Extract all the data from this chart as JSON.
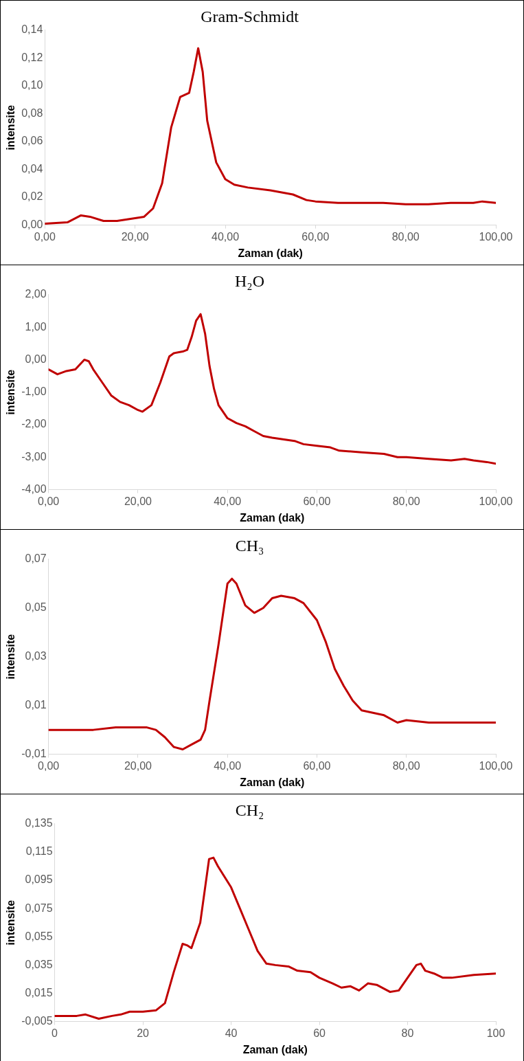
{
  "chart_data": [
    {
      "type": "line",
      "title": "Gram-Schmidt",
      "xlabel": "Zaman (dak)",
      "ylabel": "intensite",
      "marker": "none",
      "line_style": "solid",
      "x": [
        0,
        5,
        8,
        10,
        13,
        16,
        20,
        22,
        24,
        26,
        28,
        30,
        32,
        33,
        34,
        35,
        36,
        38,
        40,
        42,
        45,
        50,
        55,
        58,
        60,
        65,
        70,
        75,
        80,
        85,
        90,
        95,
        97,
        100
      ],
      "series": [
        {
          "color": "#c00000",
          "values": [
            0.001,
            0.002,
            0.007,
            0.006,
            0.003,
            0.003,
            0.005,
            0.006,
            0.012,
            0.03,
            0.07,
            0.092,
            0.095,
            0.11,
            0.127,
            0.11,
            0.075,
            0.045,
            0.033,
            0.029,
            0.027,
            0.025,
            0.022,
            0.018,
            0.017,
            0.016,
            0.016,
            0.016,
            0.015,
            0.015,
            0.016,
            0.016,
            0.017,
            0.016
          ]
        }
      ],
      "xlim": [
        0,
        100
      ],
      "ylim": [
        0,
        0.14
      ],
      "xticks": [
        {
          "value": 0,
          "label": "0,00"
        },
        {
          "value": 20,
          "label": "20,00"
        },
        {
          "value": 40,
          "label": "40,00"
        },
        {
          "value": 60,
          "label": "60,00"
        },
        {
          "value": 80,
          "label": "80,00"
        },
        {
          "value": 100,
          "label": "100,00"
        }
      ],
      "yticks": [
        {
          "value": 0,
          "label": "0,00"
        },
        {
          "value": 0.02,
          "label": "0,02"
        },
        {
          "value": 0.04,
          "label": "0,04"
        },
        {
          "value": 0.06,
          "label": "0,06"
        },
        {
          "value": 0.08,
          "label": "0,08"
        },
        {
          "value": 0.1,
          "label": "0,10"
        },
        {
          "value": 0.12,
          "label": "0,12"
        },
        {
          "value": 0.14,
          "label": "0,14"
        }
      ]
    },
    {
      "type": "line",
      "title": "H₂O",
      "xlabel": "Zaman (dak)",
      "ylabel": "intensite",
      "marker": "none",
      "line_style": "solid",
      "x": [
        0,
        2,
        4,
        6,
        8,
        9,
        10,
        12,
        14,
        16,
        18,
        20,
        21,
        23,
        25,
        27,
        28,
        30,
        31,
        32,
        33,
        34,
        35,
        36,
        37,
        38,
        40,
        42,
        44,
        46,
        48,
        50,
        55,
        57,
        60,
        63,
        65,
        70,
        75,
        78,
        80,
        85,
        90,
        93,
        95,
        98,
        100
      ],
      "series": [
        {
          "color": "#c00000",
          "values": [
            -0.3,
            -0.45,
            -0.35,
            -0.3,
            0.0,
            -0.05,
            -0.3,
            -0.7,
            -1.1,
            -1.3,
            -1.4,
            -1.55,
            -1.6,
            -1.4,
            -0.7,
            0.1,
            0.2,
            0.25,
            0.3,
            0.7,
            1.2,
            1.4,
            0.8,
            -0.2,
            -0.9,
            -1.4,
            -1.8,
            -1.95,
            -2.05,
            -2.2,
            -2.35,
            -2.4,
            -2.5,
            -2.6,
            -2.65,
            -2.7,
            -2.8,
            -2.85,
            -2.9,
            -3.0,
            -3.0,
            -3.05,
            -3.1,
            -3.05,
            -3.1,
            -3.15,
            -3.2
          ]
        }
      ],
      "xlim": [
        0,
        100
      ],
      "ylim": [
        -4,
        2
      ],
      "xticks": [
        {
          "value": 0,
          "label": "0,00"
        },
        {
          "value": 20,
          "label": "20,00"
        },
        {
          "value": 40,
          "label": "40,00"
        },
        {
          "value": 60,
          "label": "60,00"
        },
        {
          "value": 80,
          "label": "80,00"
        },
        {
          "value": 100,
          "label": "100,00"
        }
      ],
      "yticks": [
        {
          "value": -4,
          "label": "-4,00"
        },
        {
          "value": -3,
          "label": "-3,00"
        },
        {
          "value": -2,
          "label": "-2,00"
        },
        {
          "value": -1,
          "label": "-1,00"
        },
        {
          "value": 0,
          "label": "0,00"
        },
        {
          "value": 1,
          "label": "1,00"
        },
        {
          "value": 2,
          "label": "2,00"
        }
      ]
    },
    {
      "type": "line",
      "title": "CH₃",
      "xlabel": "Zaman (dak)",
      "ylabel": "intensite",
      "marker": "none",
      "line_style": "solid",
      "x": [
        0,
        5,
        10,
        15,
        20,
        22,
        24,
        26,
        28,
        30,
        32,
        34,
        35,
        36,
        38,
        40,
        41,
        42,
        44,
        46,
        48,
        50,
        52,
        55,
        57,
        60,
        62,
        64,
        66,
        68,
        70,
        75,
        78,
        80,
        85,
        90,
        95,
        100
      ],
      "series": [
        {
          "color": "#c00000",
          "values": [
            0.0,
            0.0,
            0.0,
            0.001,
            0.001,
            0.001,
            0.0,
            -0.003,
            -0.007,
            -0.008,
            -0.006,
            -0.004,
            0.0,
            0.012,
            0.035,
            0.06,
            0.062,
            0.06,
            0.051,
            0.048,
            0.05,
            0.054,
            0.055,
            0.054,
            0.052,
            0.045,
            0.036,
            0.025,
            0.018,
            0.012,
            0.008,
            0.006,
            0.003,
            0.004,
            0.003,
            0.003,
            0.003,
            0.003
          ]
        }
      ],
      "xlim": [
        0,
        100
      ],
      "ylim": [
        -0.01,
        0.07
      ],
      "xticks": [
        {
          "value": 0,
          "label": "0,00"
        },
        {
          "value": 20,
          "label": "20,00"
        },
        {
          "value": 40,
          "label": "40,00"
        },
        {
          "value": 60,
          "label": "60,00"
        },
        {
          "value": 80,
          "label": "80,00"
        },
        {
          "value": 100,
          "label": "100,00"
        }
      ],
      "yticks": [
        {
          "value": -0.01,
          "label": "-0,01"
        },
        {
          "value": 0.01,
          "label": "0,01"
        },
        {
          "value": 0.03,
          "label": "0,03"
        },
        {
          "value": 0.05,
          "label": "0,05"
        },
        {
          "value": 0.07,
          "label": "0,07"
        }
      ]
    },
    {
      "type": "line",
      "title": "CH₂",
      "xlabel": "Zaman (dak)",
      "ylabel": "intensite",
      "marker": "none",
      "line_style": "solid",
      "x": [
        0,
        5,
        7,
        10,
        13,
        15,
        17,
        20,
        23,
        25,
        27,
        29,
        30,
        31,
        33,
        35,
        36,
        37,
        40,
        42,
        44,
        46,
        48,
        50,
        53,
        55,
        58,
        60,
        63,
        65,
        67,
        69,
        71,
        73,
        76,
        78,
        80,
        82,
        83,
        84,
        86,
        88,
        90,
        95,
        100
      ],
      "series": [
        {
          "color": "#c00000",
          "values": [
            -0.001,
            -0.001,
            0.0,
            -0.003,
            -0.001,
            0.0,
            0.002,
            0.002,
            0.003,
            0.008,
            0.03,
            0.05,
            0.049,
            0.047,
            0.065,
            0.11,
            0.111,
            0.105,
            0.09,
            0.075,
            0.06,
            0.045,
            0.036,
            0.035,
            0.034,
            0.031,
            0.03,
            0.026,
            0.022,
            0.019,
            0.02,
            0.017,
            0.022,
            0.021,
            0.016,
            0.017,
            0.026,
            0.035,
            0.036,
            0.031,
            0.029,
            0.026,
            0.026,
            0.028,
            0.029
          ]
        }
      ],
      "xlim": [
        0,
        100
      ],
      "ylim": [
        -0.005,
        0.135
      ],
      "xticks": [
        0,
        20,
        40,
        60,
        80,
        100
      ],
      "yticks": [
        {
          "value": -0.005,
          "label": "-0,005"
        },
        {
          "value": 0.015,
          "label": "0,015"
        },
        {
          "value": 0.035,
          "label": "0,035"
        },
        {
          "value": 0.055,
          "label": "0,055"
        },
        {
          "value": 0.075,
          "label": "0,075"
        },
        {
          "value": 0.095,
          "label": "0,095"
        },
        {
          "value": 0.115,
          "label": "0,115"
        },
        {
          "value": 0.135,
          "label": "0,135"
        }
      ]
    }
  ]
}
